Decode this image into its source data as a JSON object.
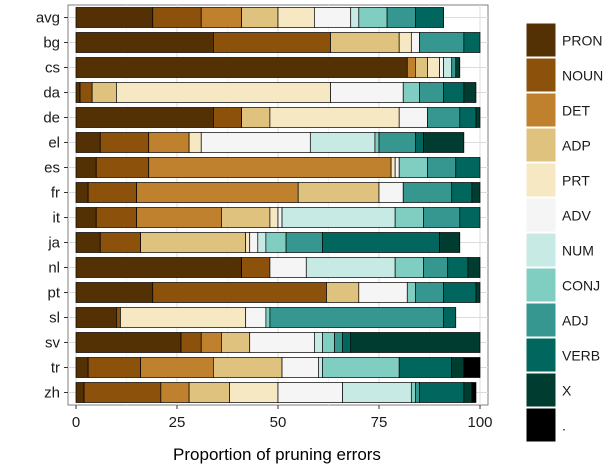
{
  "chart_data": {
    "type": "bar",
    "orientation": "horizontal",
    "stacked": true,
    "xlabel": "Proportion of pruning errors",
    "ylabel": "",
    "xlim": [
      0,
      100
    ],
    "xticks": [
      0,
      25,
      50,
      75,
      100
    ],
    "grid": true,
    "legend_position": "right",
    "categories": [
      "avg",
      "bg",
      "cs",
      "da",
      "de",
      "el",
      "es",
      "fr",
      "it",
      "ja",
      "nl",
      "pt",
      "sl",
      "sv",
      "tr",
      "zh"
    ],
    "series": [
      {
        "name": "PRON",
        "color": "#543005",
        "values": [
          19,
          34,
          82,
          1,
          34,
          6,
          5,
          3,
          5,
          6,
          41,
          19,
          10,
          26,
          3,
          2
        ]
      },
      {
        "name": "NOUN",
        "color": "#8c510a",
        "values": [
          12,
          29,
          0,
          3,
          7,
          12,
          13,
          12,
          10,
          10,
          7,
          43,
          1,
          5,
          13,
          19
        ]
      },
      {
        "name": "DET",
        "color": "#bf812d",
        "values": [
          10,
          0,
          2,
          0,
          0,
          10,
          60,
          40,
          21,
          0,
          0,
          0,
          0,
          5,
          18,
          7
        ]
      },
      {
        "name": "ADP",
        "color": "#dfc27d",
        "values": [
          9,
          17,
          3,
          6,
          7,
          0,
          0,
          20,
          12,
          26,
          0,
          8,
          0,
          7,
          17,
          10
        ]
      },
      {
        "name": "PRT",
        "color": "#f6e8c3",
        "values": [
          9,
          3,
          3,
          53,
          32,
          3,
          1,
          0,
          2,
          1,
          0,
          0,
          31,
          0,
          0,
          12
        ]
      },
      {
        "name": "ADV",
        "color": "#f5f5f5",
        "values": [
          9,
          2,
          1,
          18,
          7,
          27,
          1,
          6,
          1,
          2,
          9,
          12,
          5,
          16,
          9,
          16
        ]
      },
      {
        "name": "NUM",
        "color": "#c7eae5",
        "values": [
          2,
          0,
          2,
          0,
          0,
          16,
          0,
          0,
          28,
          2,
          22,
          0,
          0,
          2,
          1,
          17
        ]
      },
      {
        "name": "CONJ",
        "color": "#80cdc1",
        "values": [
          7,
          0,
          0,
          4,
          0,
          1,
          7,
          0,
          7,
          5,
          7,
          2,
          1,
          3,
          19,
          1
        ]
      },
      {
        "name": "ADJ",
        "color": "#35978f",
        "values": [
          7,
          11,
          1,
          6,
          8,
          9,
          7,
          12,
          9,
          9,
          6,
          7,
          43,
          2,
          0,
          1
        ]
      },
      {
        "name": "VERB",
        "color": "#01665e",
        "values": [
          7,
          4,
          0,
          5,
          4,
          2,
          6,
          5,
          5,
          29,
          5,
          8,
          3,
          2,
          13,
          11
        ]
      },
      {
        "name": "X",
        "color": "#003c30",
        "values": [
          0,
          0,
          1,
          3,
          1,
          10,
          0,
          2,
          0,
          5,
          3,
          1,
          0,
          32,
          3,
          2
        ]
      },
      {
        "name": ".",
        "color": "#000000",
        "values": [
          0,
          0,
          0,
          0,
          0,
          0,
          0,
          0,
          0,
          0,
          0,
          0,
          0,
          0,
          4,
          1
        ]
      }
    ]
  }
}
